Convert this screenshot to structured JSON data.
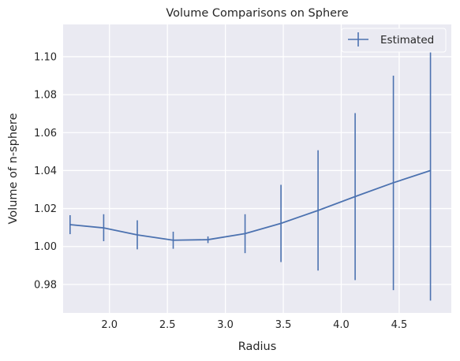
{
  "chart_data": {
    "type": "line",
    "title": "Volume Comparisons on Sphere",
    "xlabel": "Radius",
    "ylabel": "Volume of n-sphere",
    "xlim": [
      1.6,
      4.95
    ],
    "ylim": [
      0.965,
      1.117
    ],
    "xticks": [
      2.0,
      2.5,
      3.0,
      3.5,
      4.0,
      4.5
    ],
    "xtick_labels": [
      "2.0",
      "2.5",
      "3.0",
      "3.5",
      "4.0",
      "4.5"
    ],
    "yticks": [
      0.98,
      1.0,
      1.02,
      1.04,
      1.06,
      1.08,
      1.1
    ],
    "ytick_labels": [
      "0.98",
      "1.00",
      "1.02",
      "1.04",
      "1.06",
      "1.08",
      "1.10"
    ],
    "grid": true,
    "legend_position": "top-right",
    "series": [
      {
        "name": "Estimated",
        "color": "#4c72b0",
        "x": [
          1.66,
          1.95,
          2.24,
          2.55,
          2.85,
          3.17,
          3.48,
          3.8,
          4.12,
          4.45,
          4.77
        ],
        "y": [
          1.0115,
          1.0098,
          1.0061,
          1.0033,
          1.0036,
          1.0068,
          1.0122,
          1.019,
          1.0263,
          1.0336,
          1.04
        ],
        "err_low": [
          1.0065,
          1.0028,
          0.9985,
          0.9988,
          1.0018,
          0.9965,
          0.9918,
          0.9873,
          0.9823,
          0.977,
          0.9715
        ],
        "err_high": [
          1.0165,
          1.017,
          1.0138,
          1.0078,
          1.0053,
          1.017,
          1.0325,
          1.0507,
          1.0703,
          1.09,
          1.104
        ]
      }
    ]
  }
}
